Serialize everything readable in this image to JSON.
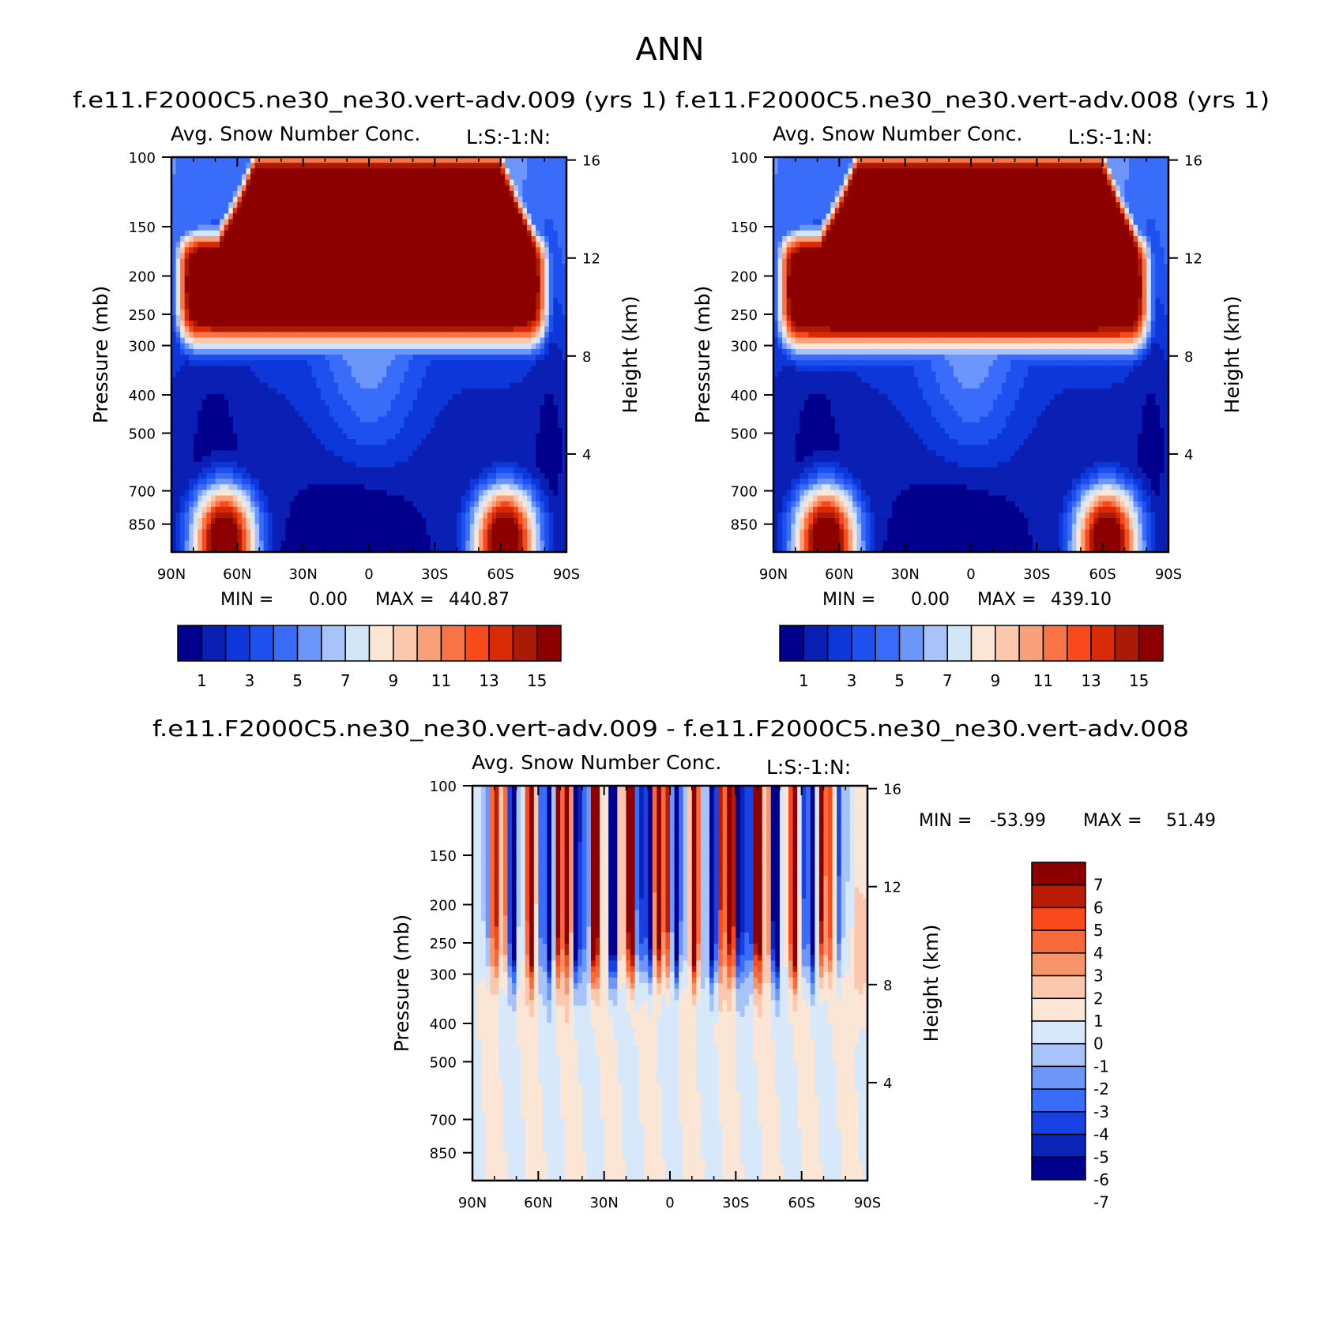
{
  "figure_title": "ANN",
  "colors": {
    "abs_scale": [
      "#00008c",
      "#0a1fb4",
      "#0d37d8",
      "#1e50f0",
      "#3a6cfa",
      "#6c96fa",
      "#a7c3fa",
      "#d2e6f8",
      "#fbe6d6",
      "#fbc8ae",
      "#f8a07a",
      "#f87346",
      "#f84a1a",
      "#d82a04",
      "#aa1a04",
      "#8c0000"
    ],
    "diff_scale": [
      "#00008c",
      "#0a24b8",
      "#1840e4",
      "#3a6cfa",
      "#6c96fa",
      "#a7c3fa",
      "#d6e8fa",
      "#fbe6d6",
      "#fbc8ae",
      "#f8946a",
      "#f86a3a",
      "#f84a1a",
      "#b81c06",
      "#8c0000"
    ]
  },
  "chart_data": [
    {
      "type": "heatmap",
      "case_title": "f.e11.F2000C5.ne30_ne30.vert-adv.009 (yrs 1)",
      "variable": "Avg. Snow Number Conc.",
      "level_label": "L:S:-1:N:",
      "ylabel": "Pressure (mb)",
      "ylabel_right": "Height (km)",
      "x_ticks": [
        "90N",
        "60N",
        "30N",
        "0",
        "30S",
        "60S",
        "90S"
      ],
      "y_ticks": [
        "100",
        "150",
        "200",
        "250",
        "300",
        "400",
        "500",
        "700",
        "850"
      ],
      "y_ticks_right": [
        "16",
        "12",
        "8",
        "4"
      ],
      "min_label": "MIN =",
      "min_value": "0.00",
      "max_label": "MAX =",
      "max_value": "440.87",
      "colorbar_labels": [
        "1",
        "3",
        "5",
        "7",
        "9",
        "11",
        "13",
        "15"
      ],
      "levels": [
        1,
        2,
        3,
        4,
        5,
        6,
        7,
        8,
        9,
        10,
        11,
        12,
        13,
        14,
        15
      ]
    },
    {
      "type": "heatmap",
      "case_title": "f.e11.F2000C5.ne30_ne30.vert-adv.008 (yrs 1)",
      "variable": "Avg. Snow Number Conc.",
      "level_label": "L:S:-1:N:",
      "ylabel": "Pressure (mb)",
      "ylabel_right": "Height (km)",
      "x_ticks": [
        "90N",
        "60N",
        "30N",
        "0",
        "30S",
        "60S",
        "90S"
      ],
      "y_ticks": [
        "100",
        "150",
        "200",
        "250",
        "300",
        "400",
        "500",
        "700",
        "850"
      ],
      "y_ticks_right": [
        "16",
        "12",
        "8",
        "4"
      ],
      "min_label": "MIN =",
      "min_value": "0.00",
      "max_label": "MAX =",
      "max_value": "439.10",
      "colorbar_labels": [
        "1",
        "3",
        "5",
        "7",
        "9",
        "11",
        "13",
        "15"
      ],
      "levels": [
        1,
        2,
        3,
        4,
        5,
        6,
        7,
        8,
        9,
        10,
        11,
        12,
        13,
        14,
        15
      ]
    },
    {
      "type": "heatmap",
      "case_title": "f.e11.F2000C5.ne30_ne30.vert-adv.009 - f.e11.F2000C5.ne30_ne30.vert-adv.008",
      "variable": "Avg. Snow Number Conc.",
      "level_label": "L:S:-1:N:",
      "ylabel": "Pressure (mb)",
      "ylabel_right": "Height (km)",
      "x_ticks": [
        "90N",
        "60N",
        "30N",
        "0",
        "30S",
        "60S",
        "90S"
      ],
      "y_ticks": [
        "100",
        "150",
        "200",
        "250",
        "300",
        "400",
        "500",
        "700",
        "850"
      ],
      "y_ticks_right": [
        "16",
        "12",
        "8",
        "4"
      ],
      "min_label": "MIN =",
      "min_value": "-53.99",
      "max_label": "MAX =",
      "max_value": "51.49",
      "colorbar_labels": [
        "7",
        "6",
        "5",
        "4",
        "3",
        "2",
        "1",
        "0",
        "-1",
        "-2",
        "-3",
        "-4",
        "-5",
        "-6",
        "-7"
      ],
      "levels": [
        7,
        6,
        5,
        4,
        3,
        2,
        1,
        0,
        -1,
        -2,
        -3,
        -4,
        -5,
        -6,
        -7
      ]
    }
  ]
}
